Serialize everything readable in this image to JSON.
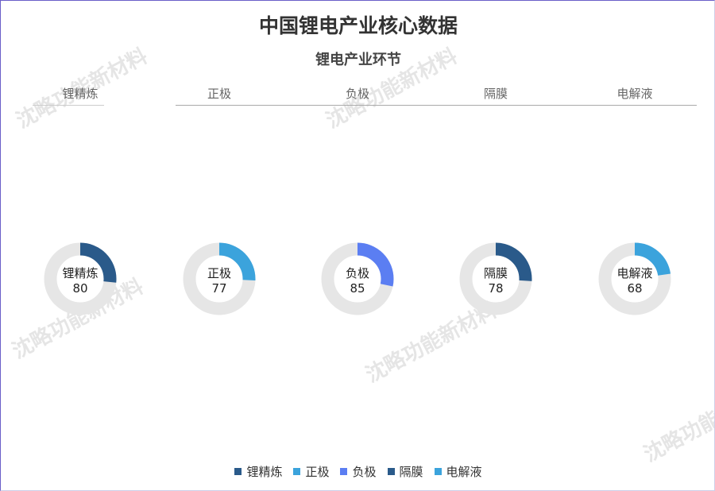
{
  "title": "中国锂电产业核心数据",
  "subtitle": "锂电产业环节",
  "watermark": "沈略功能新材料",
  "chart_data": {
    "type": "pie",
    "variant": "donut-gauges",
    "categories": [
      "锂精炼",
      "正极",
      "负极",
      "隔膜",
      "电解液"
    ],
    "values": [
      80,
      77,
      85,
      78,
      68
    ],
    "colors": [
      "#2a5a8a",
      "#3ba3dc",
      "#5b7ef2",
      "#2a5a8a",
      "#3ba3dc"
    ],
    "track_color": "#e6e6e6",
    "legend": "bottom"
  }
}
